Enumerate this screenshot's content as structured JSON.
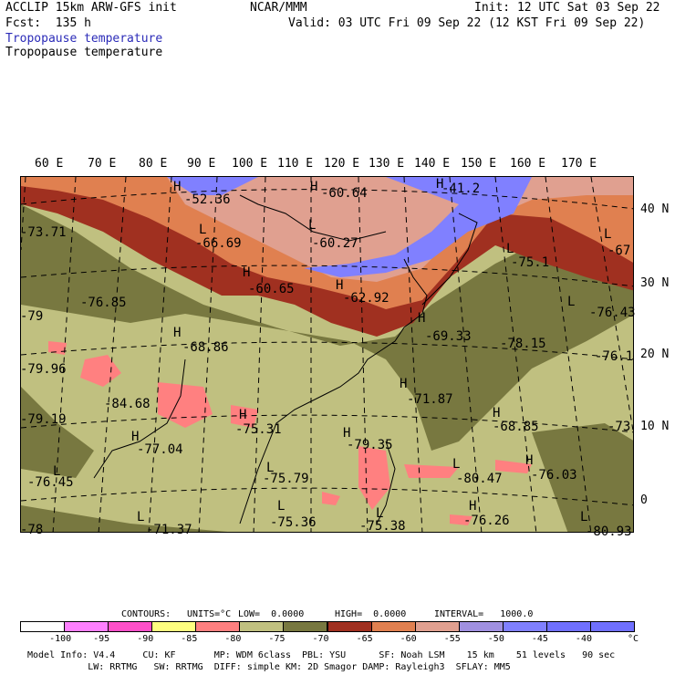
{
  "header": {
    "model": "ACCLIP 15km ARW-GFS init",
    "org": "NCAR/MMM",
    "init": "Init: 12 UTC Sat 03 Sep 22",
    "fcst": "Fcst:  135 h",
    "valid": "Valid: 03 UTC Fri 09 Sep 22 (12 KST Fri 09 Sep 22)",
    "field_colored": "Tropopause temperature",
    "field_contour": "Tropopause temperature"
  },
  "map": {
    "lon_labels": [
      "60 E",
      "70 E",
      "80 E",
      "90 E",
      "100 E",
      "110 E",
      "120 E",
      "130 E",
      "140 E",
      "150 E",
      "160 E",
      "170 E"
    ],
    "lat_labels": [
      "40 N",
      "30 N",
      "20 N",
      "10 N",
      "0"
    ],
    "highs_lows": [
      {
        "kind": "H",
        "value": "-52.36"
      },
      {
        "kind": "H",
        "value": "-60.64"
      },
      {
        "kind": "H",
        "value": "-41.2"
      },
      {
        "kind": "L",
        "value": "-73.71"
      },
      {
        "kind": "L",
        "value": "-66.69"
      },
      {
        "kind": "L",
        "value": "-60.27"
      },
      {
        "kind": "L",
        "value": "-67"
      },
      {
        "kind": "L",
        "value": "-75.1"
      },
      {
        "kind": "L",
        "value": "-76.85"
      },
      {
        "kind": "H",
        "value": "-60.65"
      },
      {
        "kind": "H",
        "value": "-62.92"
      },
      {
        "kind": "L",
        "value": "-79"
      },
      {
        "kind": "L",
        "value": "-76.43"
      },
      {
        "kind": "H",
        "value": "-68.86"
      },
      {
        "kind": "H",
        "value": "-69.33"
      },
      {
        "kind": "L",
        "value": "-78.15"
      },
      {
        "kind": "L",
        "value": "-79.96"
      },
      {
        "kind": "L",
        "value": "-76.1"
      },
      {
        "kind": "L",
        "value": "-84.68"
      },
      {
        "kind": "H",
        "value": "-71.87"
      },
      {
        "kind": "H",
        "value": "-68.85"
      },
      {
        "kind": "L",
        "value": "-73"
      },
      {
        "kind": "L",
        "value": "-79.19"
      },
      {
        "kind": "H",
        "value": "-75.31"
      },
      {
        "kind": "H",
        "value": "-77.04"
      },
      {
        "kind": "H",
        "value": "-79.35"
      },
      {
        "kind": "L",
        "value": "-80.47"
      },
      {
        "kind": "H",
        "value": "-76.03"
      },
      {
        "kind": "L",
        "value": "-76.45"
      },
      {
        "kind": "L",
        "value": "-75.79"
      },
      {
        "kind": "L",
        "value": "-75.36"
      },
      {
        "kind": "L",
        "value": "-75.38"
      },
      {
        "kind": "H",
        "value": "-76.26"
      },
      {
        "kind": "L",
        "value": "-78"
      },
      {
        "kind": "L",
        "value": "-71.37"
      },
      {
        "kind": "L",
        "value": "-80.93"
      }
    ]
  },
  "contour_info": {
    "contours": "CONTOURS:",
    "units": "UNITS=°C",
    "low": "LOW=  0.0000",
    "high": "HIGH=  0.0000",
    "interval": "INTERVAL=   1000.0"
  },
  "legend": {
    "colors": [
      "#ffffff",
      "#ff80ff",
      "#ff50c8",
      "#ffff80",
      "#ff8080",
      "#c0c080",
      "#787840",
      "#a03020",
      "#e08050",
      "#e0a090",
      "#a090e0",
      "#8080ff",
      "#7070ff",
      "#7070ff"
    ],
    "ticks": [
      "-100",
      "-95",
      "-90",
      "-85",
      "-80",
      "-75",
      "-70",
      "-65",
      "-60",
      "-55",
      "-50",
      "-45",
      "-40"
    ],
    "unit": "°C"
  },
  "footer": {
    "line1": "Model Info: V4.4     CU: KF       MP: WDM 6class  PBL: YSU      SF: Noah LSM    15 km    51 levels   90 sec",
    "line2": "           LW: RRTMG   SW: RRTMG  DIFF: simple KM: 2D Smagor DAMP: Rayleigh3  SFLAY: MM5"
  }
}
